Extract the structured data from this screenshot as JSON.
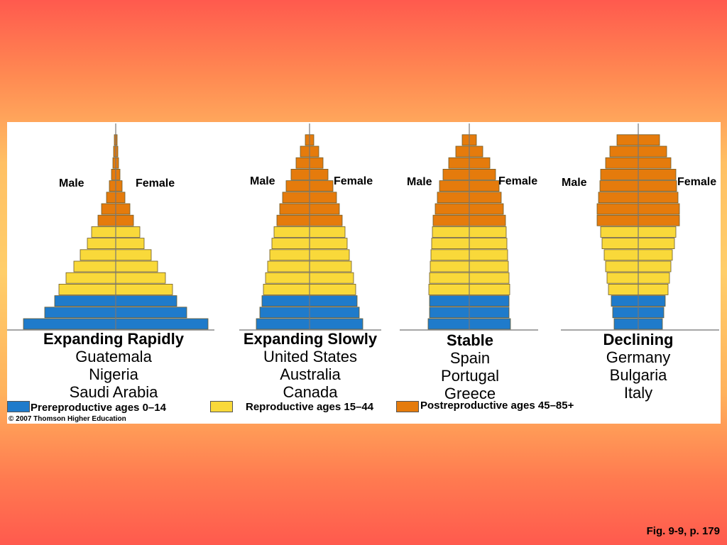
{
  "colors": {
    "prereproductive": "#1f7bcb",
    "reproductive": "#f9d93a",
    "postreproductive": "#e57b0c",
    "bar_stroke": "#6b5a2a"
  },
  "axis_labels": {
    "male": "Male",
    "female": "Female"
  },
  "legend": {
    "prereproductive": "Prereproductive ages 0–14",
    "reproductive": "Reproductive ages 15–44",
    "postreproductive": "Postreproductive ages 45–85+"
  },
  "copyright": "© 2007 Thomson Higher Education",
  "figure_ref": "Fig. 9-9, p. 179",
  "chart_data": [
    {
      "type": "bar",
      "title": "Expanding Rapidly",
      "countries": [
        "Guatemala",
        "Nigeria",
        "Saudi Arabia"
      ],
      "age_group_index_order": "bottom (youngest) to top (oldest)",
      "groups": [
        "prereproductive",
        "prereproductive",
        "prereproductive",
        "reproductive",
        "reproductive",
        "reproductive",
        "reproductive",
        "reproductive",
        "reproductive",
        "postreproductive",
        "postreproductive",
        "postreproductive",
        "postreproductive",
        "postreproductive",
        "postreproductive",
        "postreproductive",
        "postreproductive"
      ],
      "values": [
        130,
        100,
        86,
        80,
        70,
        59,
        50,
        40,
        34,
        25,
        20,
        13,
        9,
        6,
        4,
        3,
        2
      ]
    },
    {
      "type": "bar",
      "title": "Expanding Slowly",
      "countries": [
        "United States",
        "Australia",
        "Canada"
      ],
      "groups": [
        "prereproductive",
        "prereproductive",
        "prereproductive",
        "reproductive",
        "reproductive",
        "reproductive",
        "reproductive",
        "reproductive",
        "reproductive",
        "postreproductive",
        "postreproductive",
        "postreproductive",
        "postreproductive",
        "postreproductive",
        "postreproductive",
        "postreproductive",
        "postreproductive"
      ],
      "values": [
        75,
        70,
        67,
        65,
        62,
        59,
        56,
        53,
        50,
        46,
        42,
        38,
        33,
        26,
        19,
        13,
        6
      ]
    },
    {
      "type": "bar",
      "title": "Stable",
      "countries": [
        "Spain",
        "Portugal",
        "Greece"
      ],
      "groups": [
        "prereproductive",
        "prereproductive",
        "prereproductive",
        "reproductive",
        "reproductive",
        "reproductive",
        "reproductive",
        "reproductive",
        "reproductive",
        "postreproductive",
        "postreproductive",
        "postreproductive",
        "postreproductive",
        "postreproductive",
        "postreproductive",
        "postreproductive",
        "postreproductive"
      ],
      "values": [
        58,
        56,
        56,
        57,
        56,
        55,
        54,
        53,
        52,
        51,
        48,
        45,
        42,
        37,
        29,
        19,
        10
      ]
    },
    {
      "type": "bar",
      "title": "Declining",
      "countries": [
        "Germany",
        "Bulgaria",
        "Italy"
      ],
      "groups": [
        "prereproductive",
        "prereproductive",
        "prereproductive",
        "reproductive",
        "reproductive",
        "reproductive",
        "reproductive",
        "reproductive",
        "reproductive",
        "postreproductive",
        "postreproductive",
        "postreproductive",
        "postreproductive",
        "postreproductive",
        "postreproductive",
        "postreproductive",
        "postreproductive"
      ],
      "values": [
        34,
        36,
        38,
        42,
        44,
        46,
        48,
        51,
        53,
        58,
        58,
        56,
        54,
        53,
        46,
        40,
        30
      ]
    }
  ]
}
